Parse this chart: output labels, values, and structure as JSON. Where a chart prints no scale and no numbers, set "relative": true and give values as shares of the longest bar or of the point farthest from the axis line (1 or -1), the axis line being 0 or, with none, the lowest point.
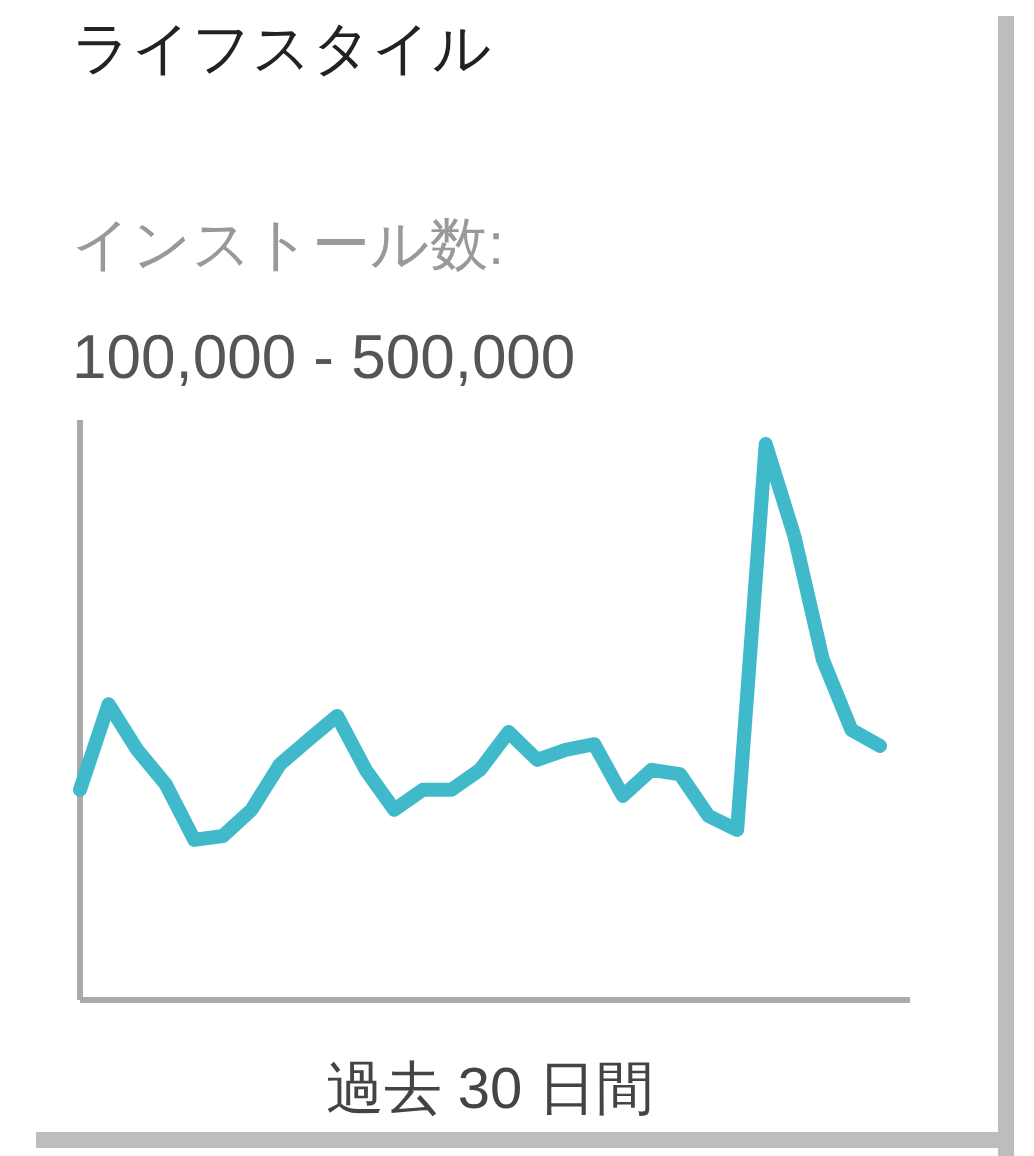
{
  "chart_data": {
    "type": "line",
    "title": "ライフスタイル",
    "subtitle": "インストール数:",
    "annotations": [
      "100,000 - 500,000"
    ],
    "xlabel": "過去 30 日間",
    "relative": true,
    "color": "#40b9cb",
    "categories": [
      null,
      null,
      null,
      null,
      null,
      null,
      null,
      null,
      null,
      null,
      null,
      null,
      null,
      null,
      null,
      null,
      null,
      null,
      null,
      null,
      null,
      null,
      null,
      null,
      null,
      null,
      null,
      null,
      null
    ],
    "values": [
      0.378,
      0.532,
      0.45,
      0.388,
      0.288,
      0.295,
      0.342,
      0.424,
      0.468,
      0.511,
      0.414,
      0.342,
      0.378,
      0.378,
      0.414,
      0.482,
      0.432,
      0.45,
      0.46,
      0.367,
      0.414,
      0.406,
      0.331,
      0.306,
      1,
      0.835,
      0.612,
      0.486,
      0.457
    ]
  }
}
